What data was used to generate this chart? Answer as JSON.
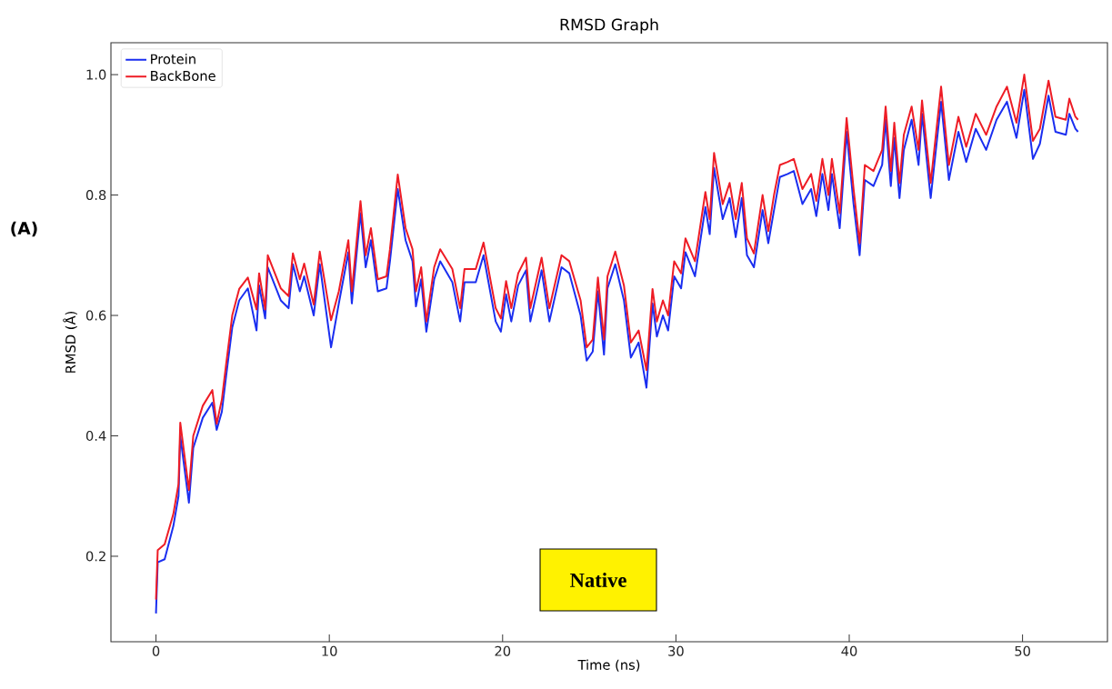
{
  "chart_data": {
    "type": "line",
    "title": "RMSD Graph",
    "xlabel": "Time (ns)",
    "ylabel": "RMSD (Å)",
    "xlim": [
      -2.6,
      54.9
    ],
    "ylim": [
      0.058,
      1.053
    ],
    "xticks": [
      0,
      10,
      20,
      30,
      40,
      50
    ],
    "yticks": [
      0.2,
      0.4,
      0.6,
      0.8,
      {
        "value": 1.0,
        "label": "1.0"
      }
    ],
    "grid": false,
    "legend": "top left",
    "marker": "none",
    "line_style": "solid",
    "annotations": [
      "(A)",
      "Native"
    ],
    "series": [
      {
        "name": "Protein",
        "color": "#1a2ef0",
        "x": [
          0,
          0.1,
          0.5,
          1.0,
          1.3,
          1.4,
          1.9,
          2.15,
          2.7,
          3.25,
          3.5,
          3.8,
          4.05,
          4.4,
          4.8,
          5.3,
          5.8,
          5.95,
          6.3,
          6.45,
          7.2,
          7.65,
          7.9,
          8.3,
          8.55,
          9.1,
          9.45,
          10.1,
          10.55,
          11.1,
          11.3,
          11.8,
          12.1,
          12.4,
          12.8,
          13.3,
          13.5,
          13.95,
          14.4,
          14.8,
          15.0,
          15.3,
          15.6,
          16.05,
          16.4,
          17.1,
          17.55,
          17.8,
          18.45,
          18.9,
          19.6,
          19.9,
          20.2,
          20.5,
          20.9,
          21.35,
          21.6,
          22.25,
          22.7,
          23.4,
          23.85,
          24.5,
          24.85,
          25.2,
          25.5,
          25.85,
          26.05,
          26.5,
          27.0,
          27.4,
          27.85,
          28.3,
          28.65,
          28.9,
          29.25,
          29.55,
          29.9,
          30.3,
          30.55,
          31.1,
          31.7,
          31.95,
          32.2,
          32.7,
          33.1,
          33.45,
          33.8,
          34.1,
          34.5,
          35.0,
          35.33,
          35.66,
          36.0,
          36.45,
          36.8,
          37.3,
          37.8,
          38.1,
          38.45,
          38.8,
          39.0,
          39.45,
          39.85,
          40.25,
          40.6,
          40.9,
          41.4,
          41.9,
          42.1,
          42.4,
          42.6,
          42.9,
          43.15,
          43.6,
          44.0,
          44.2,
          44.7,
          45.3,
          45.75,
          46.3,
          46.75,
          47.3,
          47.9,
          48.5,
          49.1,
          49.65,
          50.1,
          50.6,
          51.0,
          51.5,
          51.9,
          52.5,
          52.7,
          53.05,
          53.2
        ],
        "values": [
          0.105,
          0.19,
          0.195,
          0.25,
          0.3,
          0.4,
          0.289,
          0.38,
          0.43,
          0.455,
          0.41,
          0.44,
          0.5,
          0.58,
          0.625,
          0.645,
          0.575,
          0.65,
          0.595,
          0.68,
          0.625,
          0.612,
          0.685,
          0.64,
          0.665,
          0.6,
          0.685,
          0.547,
          0.62,
          0.705,
          0.62,
          0.77,
          0.68,
          0.725,
          0.64,
          0.645,
          0.69,
          0.81,
          0.725,
          0.69,
          0.615,
          0.66,
          0.573,
          0.66,
          0.69,
          0.655,
          0.59,
          0.655,
          0.655,
          0.7,
          0.59,
          0.573,
          0.635,
          0.59,
          0.65,
          0.675,
          0.59,
          0.675,
          0.59,
          0.68,
          0.67,
          0.6,
          0.525,
          0.54,
          0.64,
          0.535,
          0.645,
          0.685,
          0.625,
          0.53,
          0.555,
          0.48,
          0.62,
          0.565,
          0.6,
          0.575,
          0.665,
          0.645,
          0.705,
          0.665,
          0.78,
          0.735,
          0.845,
          0.76,
          0.795,
          0.73,
          0.795,
          0.7,
          0.68,
          0.775,
          0.72,
          0.775,
          0.83,
          0.835,
          0.84,
          0.785,
          0.81,
          0.765,
          0.835,
          0.775,
          0.835,
          0.745,
          0.905,
          0.785,
          0.7,
          0.825,
          0.815,
          0.85,
          0.925,
          0.815,
          0.895,
          0.795,
          0.875,
          0.925,
          0.85,
          0.935,
          0.795,
          0.955,
          0.825,
          0.905,
          0.855,
          0.91,
          0.875,
          0.925,
          0.955,
          0.895,
          0.975,
          0.86,
          0.885,
          0.965,
          0.905,
          0.9,
          0.935,
          0.91,
          0.905
        ]
      },
      {
        "name": "BackBone",
        "color": "#ee1c25",
        "x": [
          0,
          0.1,
          0.5,
          1.0,
          1.3,
          1.4,
          1.9,
          2.15,
          2.7,
          3.25,
          3.5,
          3.8,
          4.05,
          4.4,
          4.8,
          5.3,
          5.8,
          5.95,
          6.3,
          6.45,
          7.2,
          7.65,
          7.9,
          8.3,
          8.55,
          9.1,
          9.45,
          10.1,
          10.55,
          11.1,
          11.3,
          11.8,
          12.1,
          12.4,
          12.8,
          13.3,
          13.5,
          13.95,
          14.4,
          14.8,
          15.0,
          15.3,
          15.6,
          16.05,
          16.4,
          17.1,
          17.55,
          17.8,
          18.45,
          18.9,
          19.6,
          19.9,
          20.2,
          20.5,
          20.9,
          21.35,
          21.6,
          22.25,
          22.7,
          23.4,
          23.85,
          24.5,
          24.85,
          25.2,
          25.5,
          25.85,
          26.05,
          26.5,
          27.0,
          27.4,
          27.85,
          28.3,
          28.65,
          28.9,
          29.25,
          29.55,
          29.9,
          30.3,
          30.55,
          31.1,
          31.7,
          31.95,
          32.2,
          32.7,
          33.1,
          33.45,
          33.8,
          34.1,
          34.5,
          35.0,
          35.33,
          35.66,
          36.0,
          36.45,
          36.8,
          37.3,
          37.8,
          38.1,
          38.45,
          38.8,
          39.0,
          39.45,
          39.85,
          40.25,
          40.6,
          40.9,
          41.4,
          41.9,
          42.1,
          42.4,
          42.6,
          42.9,
          43.15,
          43.6,
          44.0,
          44.2,
          44.7,
          45.3,
          45.75,
          46.3,
          46.75,
          47.3,
          47.9,
          48.5,
          49.1,
          49.65,
          50.1,
          50.6,
          51.0,
          51.5,
          51.9,
          52.5,
          52.7,
          53.05,
          53.2
        ],
        "values": [
          0.128,
          0.21,
          0.22,
          0.27,
          0.32,
          0.422,
          0.31,
          0.4,
          0.45,
          0.476,
          0.42,
          0.46,
          0.52,
          0.6,
          0.644,
          0.663,
          0.61,
          0.67,
          0.61,
          0.7,
          0.645,
          0.632,
          0.703,
          0.66,
          0.686,
          0.618,
          0.706,
          0.592,
          0.64,
          0.725,
          0.64,
          0.79,
          0.7,
          0.745,
          0.66,
          0.665,
          0.71,
          0.834,
          0.745,
          0.71,
          0.64,
          0.68,
          0.59,
          0.68,
          0.71,
          0.677,
          0.612,
          0.677,
          0.677,
          0.721,
          0.612,
          0.595,
          0.657,
          0.612,
          0.67,
          0.696,
          0.612,
          0.696,
          0.612,
          0.7,
          0.69,
          0.625,
          0.547,
          0.56,
          0.663,
          0.56,
          0.665,
          0.706,
          0.65,
          0.555,
          0.575,
          0.509,
          0.644,
          0.59,
          0.625,
          0.6,
          0.69,
          0.67,
          0.728,
          0.69,
          0.805,
          0.76,
          0.87,
          0.785,
          0.82,
          0.76,
          0.82,
          0.728,
          0.703,
          0.8,
          0.74,
          0.8,
          0.85,
          0.855,
          0.86,
          0.81,
          0.835,
          0.79,
          0.86,
          0.8,
          0.86,
          0.77,
          0.928,
          0.81,
          0.72,
          0.85,
          0.84,
          0.875,
          0.947,
          0.84,
          0.92,
          0.82,
          0.9,
          0.947,
          0.875,
          0.957,
          0.82,
          0.98,
          0.85,
          0.93,
          0.88,
          0.935,
          0.9,
          0.947,
          0.98,
          0.92,
          1.0,
          0.89,
          0.91,
          0.99,
          0.93,
          0.925,
          0.96,
          0.93,
          0.925
        ]
      }
    ]
  }
}
